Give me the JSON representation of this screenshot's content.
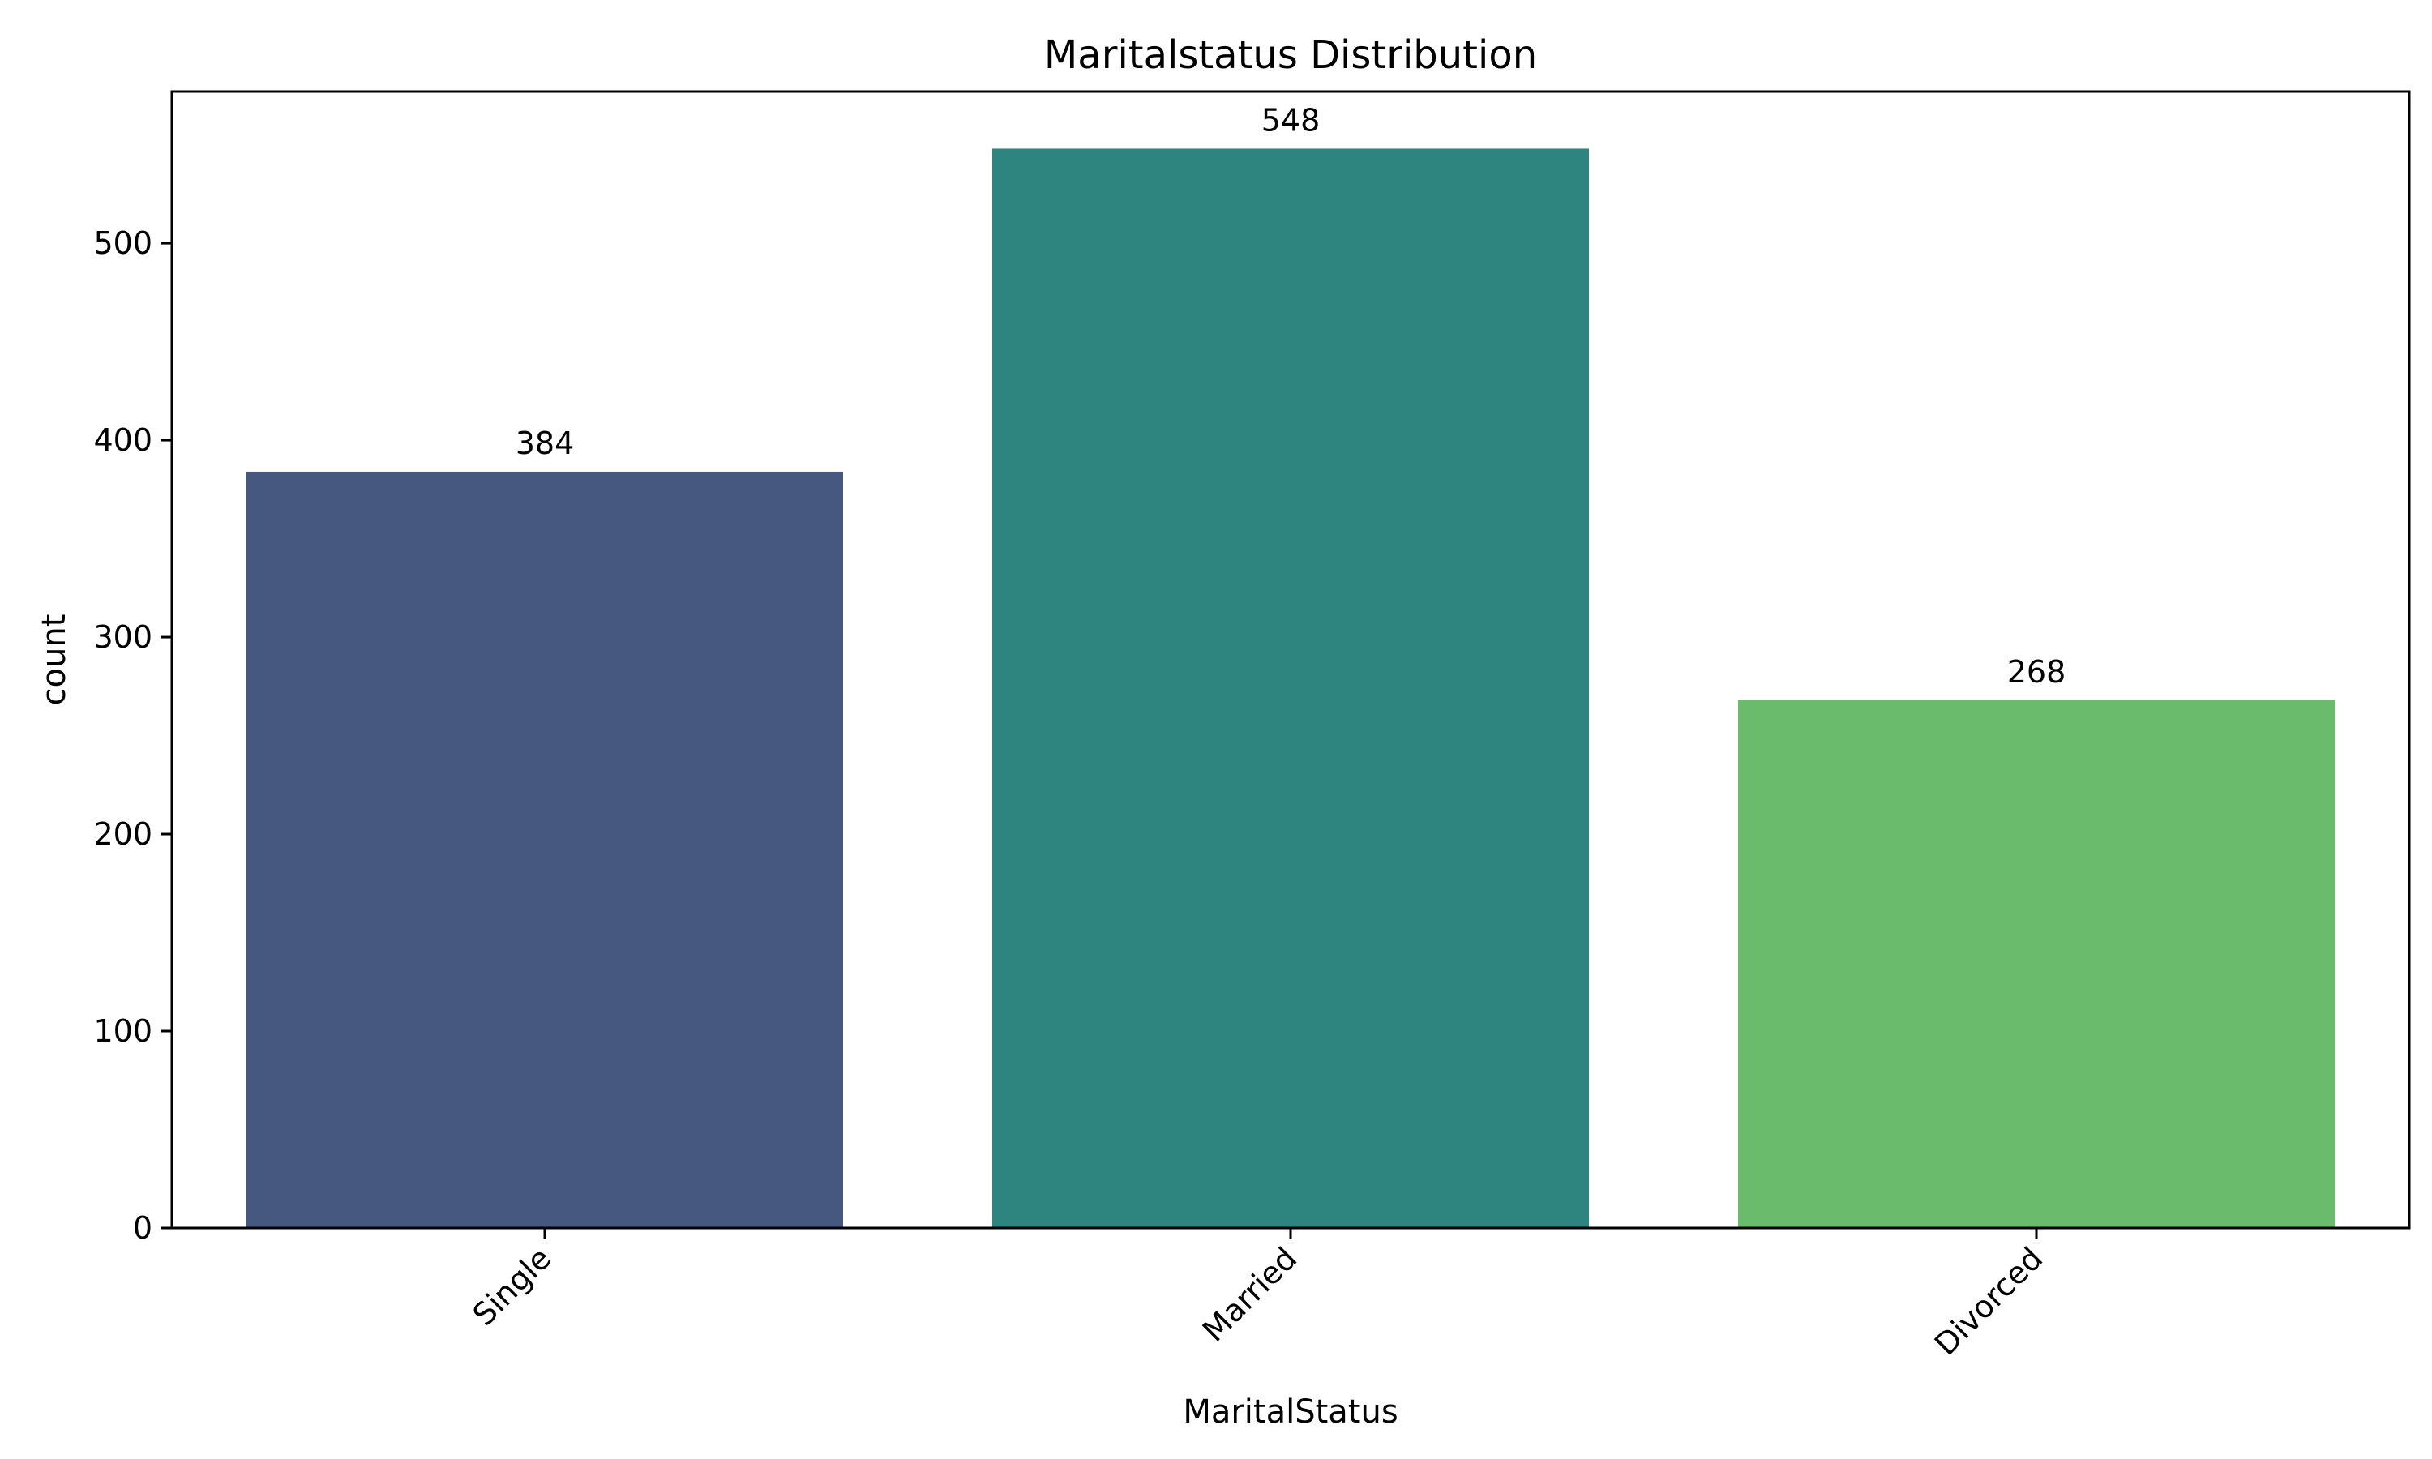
{
  "chart_data": {
    "type": "bar",
    "title": "Maritalstatus Distribution",
    "xlabel": "MaritalStatus",
    "ylabel": "count",
    "categories": [
      "Single",
      "Married",
      "Divorced"
    ],
    "values": [
      384,
      548,
      268
    ],
    "data_labels": [
      "384",
      "548",
      "268"
    ],
    "colors": [
      "#46587f",
      "#2e847e",
      "#6abb6c"
    ],
    "ylim": [
      0,
      577
    ],
    "yticks": [
      0,
      100,
      200,
      300,
      400,
      500
    ],
    "ytick_labels": [
      "0",
      "100",
      "200",
      "300",
      "400",
      "500"
    ],
    "xtick_rotation": "45",
    "grid": false,
    "legend": false
  }
}
